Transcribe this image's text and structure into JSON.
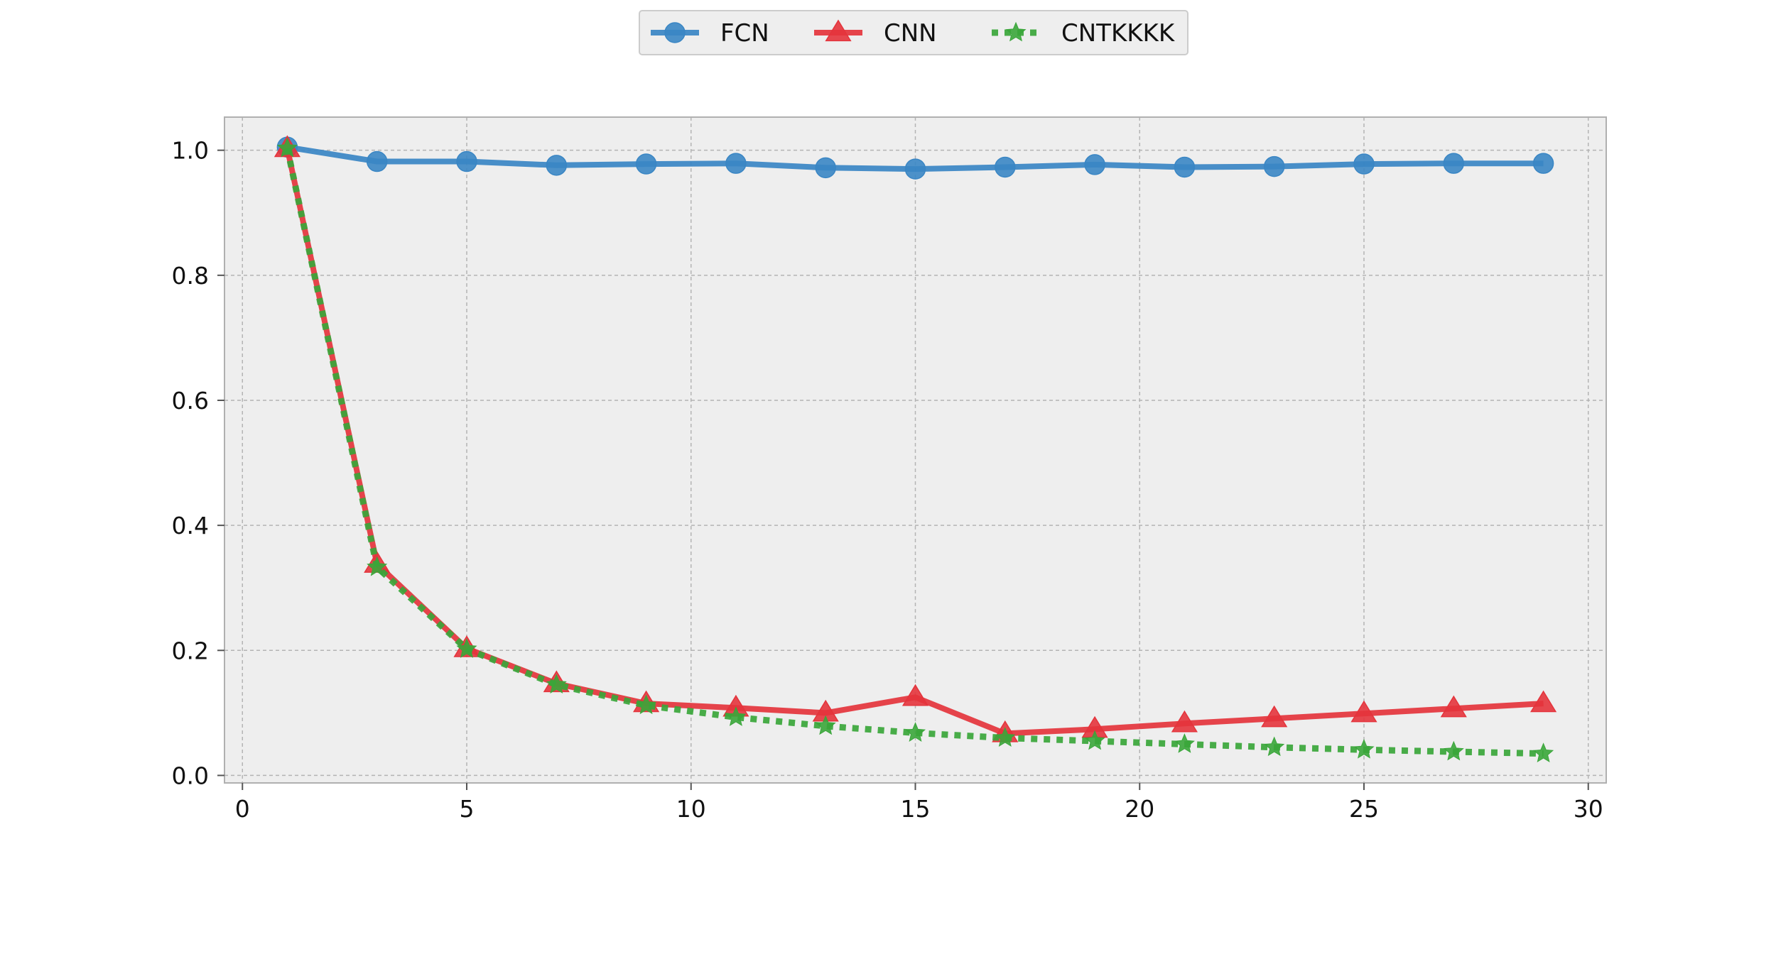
{
  "chart_data": {
    "type": "line",
    "title": "",
    "xlabel": "",
    "ylabel": "",
    "xlim": [
      -0.4,
      30.4
    ],
    "ylim": [
      -0.012,
      1.053
    ],
    "x_ticks": [
      0,
      5,
      10,
      15,
      20,
      25,
      30
    ],
    "y_ticks": [
      0.0,
      0.2,
      0.4,
      0.6,
      0.8,
      1.0
    ],
    "x_tick_labels": [
      "0",
      "5",
      "10",
      "15",
      "20",
      "25",
      "30"
    ],
    "y_tick_labels": [
      "0.0",
      "0.2",
      "0.4",
      "0.6",
      "0.8",
      "1.0"
    ],
    "grid": true,
    "legend_position": "top-center",
    "background_color": "#eeeeee",
    "x": [
      1,
      3,
      5,
      7,
      9,
      11,
      13,
      15,
      17,
      19,
      21,
      23,
      25,
      27,
      29
    ],
    "series": [
      {
        "name": "FCN",
        "color": "#3a86c4",
        "marker": "circle",
        "line_style": "solid",
        "values": [
          1.005,
          0.982,
          0.982,
          0.976,
          0.978,
          0.979,
          0.972,
          0.97,
          0.973,
          0.977,
          0.973,
          0.974,
          0.978,
          0.979,
          0.979
        ]
      },
      {
        "name": "CNN",
        "color": "#e4343c",
        "marker": "triangle",
        "line_style": "solid",
        "values": [
          1.003,
          0.338,
          0.203,
          0.147,
          0.115,
          0.108,
          0.1,
          0.125,
          0.067,
          0.074,
          0.083,
          0.091,
          0.099,
          0.107,
          0.115
        ]
      },
      {
        "name": "CNTKKKK",
        "color": "#3aa63a",
        "marker": "star",
        "line_style": "dotted",
        "values": [
          1.003,
          0.333,
          0.202,
          0.145,
          0.112,
          0.093,
          0.079,
          0.068,
          0.06,
          0.055,
          0.05,
          0.045,
          0.041,
          0.038,
          0.035
        ]
      }
    ]
  }
}
